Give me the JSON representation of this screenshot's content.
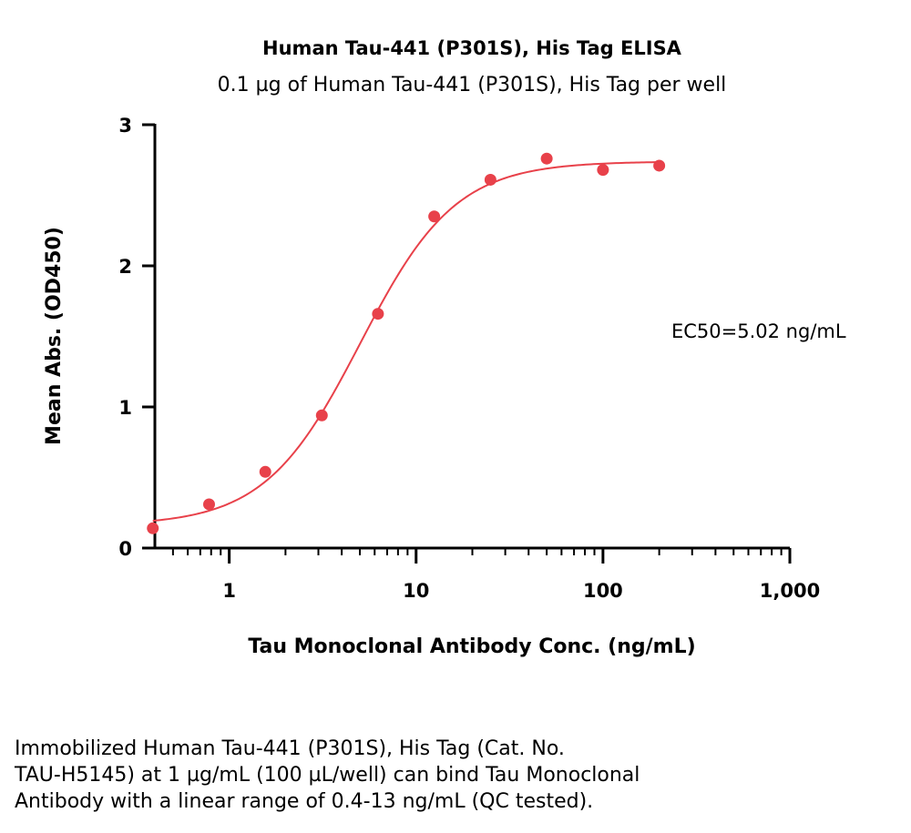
{
  "chart_data": {
    "type": "scatter",
    "title": "Human Tau-441 (P301S), His Tag ELISA",
    "subtitle": "0.1 µg of Human Tau-441 (P301S), His Tag per well",
    "xlabel": "Tau Monoclonal Antibody Conc. (ng/mL)",
    "ylabel": "Mean Abs. (OD450)",
    "x_scale": "log",
    "xlim": [
      0.4,
      1000
    ],
    "ylim": [
      0,
      3
    ],
    "x_ticks": [
      1,
      10,
      100,
      1000
    ],
    "x_tick_labels": [
      "1",
      "10",
      "100",
      "1,000"
    ],
    "y_ticks": [
      0,
      1,
      2,
      3
    ],
    "y_tick_labels": [
      "0",
      "1",
      "2",
      "3"
    ],
    "grid": false,
    "point_color": "#e8414a",
    "fit_color": "#e8414a",
    "points": [
      {
        "x": 0.39,
        "y": 0.14
      },
      {
        "x": 0.78,
        "y": 0.31
      },
      {
        "x": 1.56,
        "y": 0.54
      },
      {
        "x": 3.13,
        "y": 0.94
      },
      {
        "x": 6.25,
        "y": 1.66
      },
      {
        "x": 12.5,
        "y": 2.35
      },
      {
        "x": 25,
        "y": 2.61
      },
      {
        "x": 50,
        "y": 2.76
      },
      {
        "x": 100,
        "y": 2.68
      },
      {
        "x": 200,
        "y": 2.71
      }
    ],
    "fit": {
      "model": "4PL",
      "bottom": 0.16,
      "top": 2.74,
      "ec50": 5.02,
      "hill": 1.7,
      "x_range": [
        0.39,
        200
      ]
    },
    "annotation": "EC50=5.02 ng/mL"
  },
  "caption_lines": [
    "Immobilized Human Tau-441 (P301S), His Tag (Cat. No.",
    "TAU-H5145) at 1 µg/mL (100 µL/well) can bind Tau Monoclonal",
    "Antibody with a linear range of 0.4-13 ng/mL (QC tested)."
  ]
}
